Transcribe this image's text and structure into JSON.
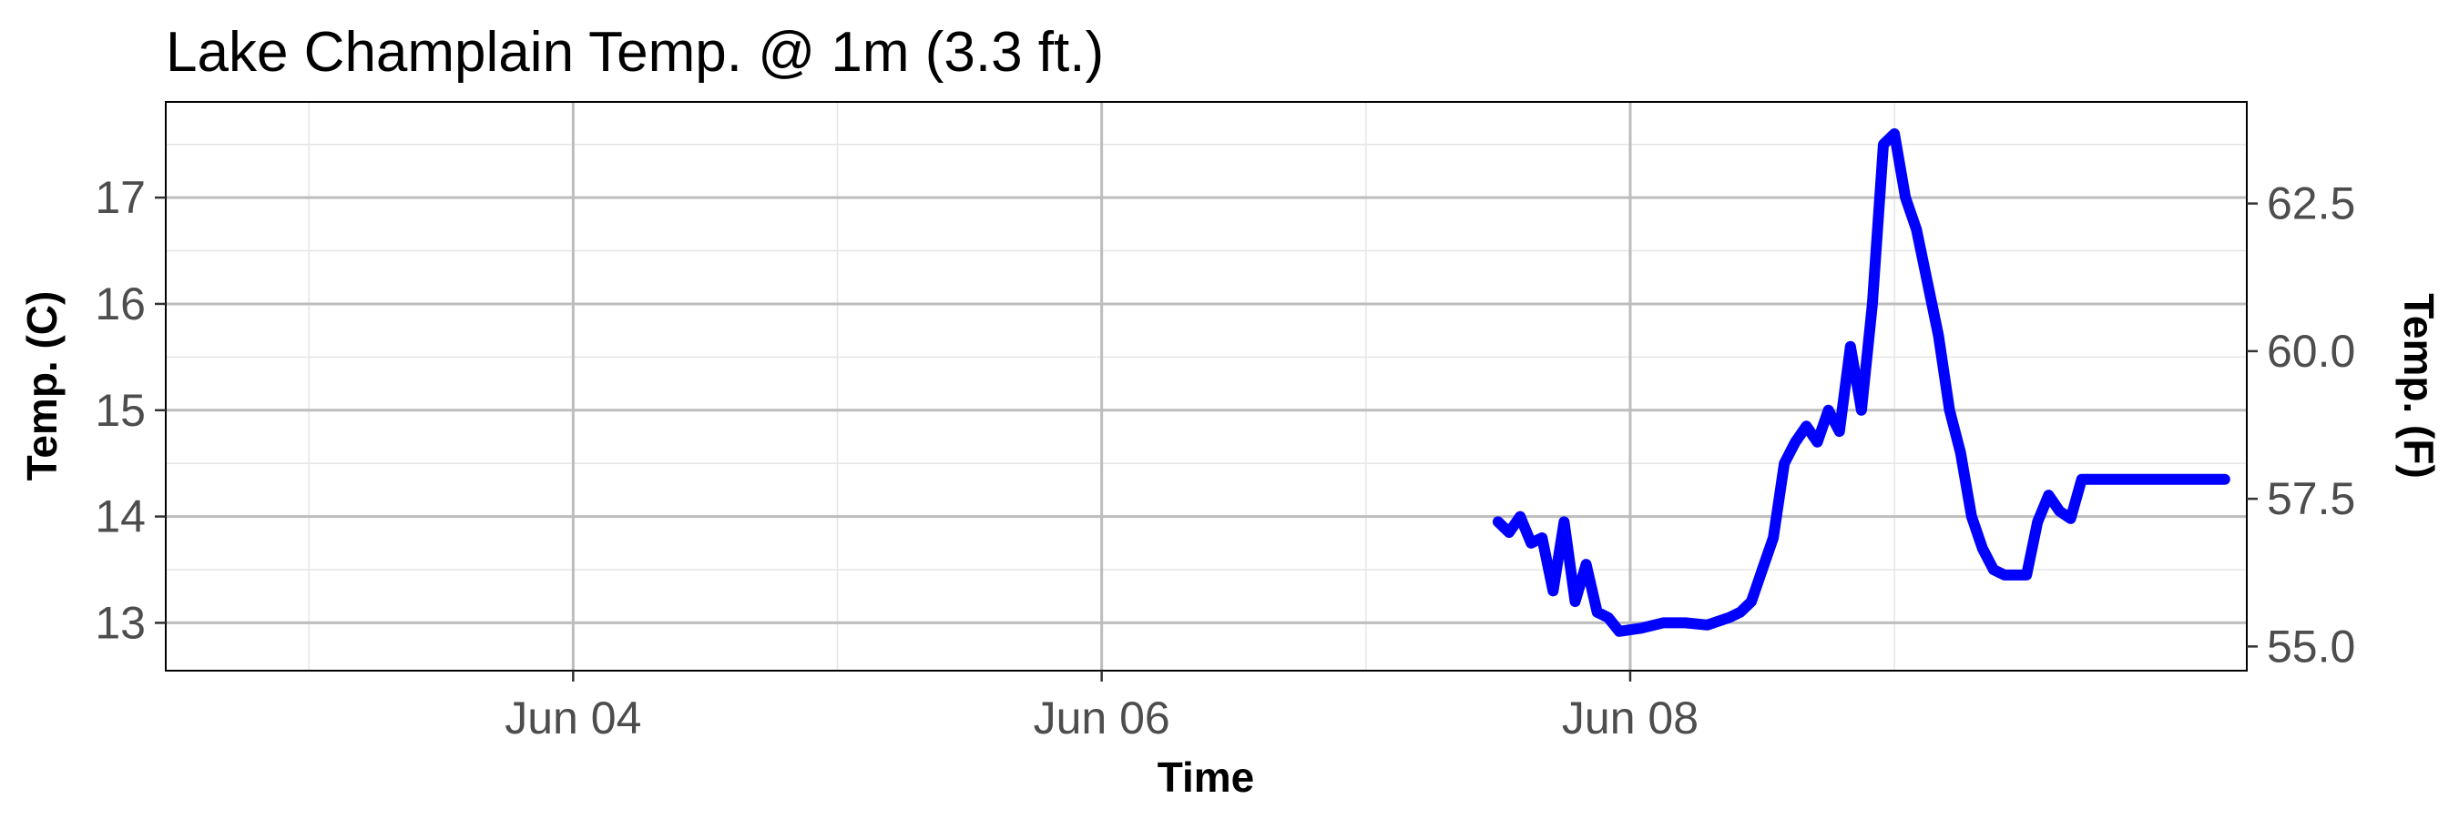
{
  "chart_data": {
    "type": "line",
    "title": "Lake Champlain Temp. @ 1m (3.3 ft.)",
    "xlabel": "Time",
    "ylabel": "Temp. (C)",
    "y2label": "Temp. (F)",
    "x_ticks": [
      "2023-06-04",
      "2023-06-06",
      "2023-06-08"
    ],
    "x_tick_labels": [
      "Jun 04",
      "Jun 06",
      "Jun 08"
    ],
    "xlim": [
      "2023-06-02T11:00",
      "2023-06-10T08:00"
    ],
    "ylim": [
      12.55,
      17.9
    ],
    "y_ticks": [
      13,
      14,
      15,
      16,
      17
    ],
    "y_tick_labels": [
      "13",
      "14",
      "15",
      "16",
      "17"
    ],
    "y2_ticks": [
      55.0,
      57.5,
      60.0,
      62.5
    ],
    "y2_tick_labels": [
      "55.0",
      "57.5",
      "60.0",
      "62.5"
    ],
    "grid": true,
    "legend": "none",
    "series": [
      {
        "color": "#0000ff",
        "x": [
          "2023-06-07T12:00",
          "2023-06-07T13:00",
          "2023-06-07T14:00",
          "2023-06-07T15:00",
          "2023-06-07T16:00",
          "2023-06-07T17:00",
          "2023-06-07T18:00",
          "2023-06-07T19:00",
          "2023-06-07T20:00",
          "2023-06-07T21:00",
          "2023-06-07T22:00",
          "2023-06-07T23:00",
          "2023-06-08T01:00",
          "2023-06-08T03:00",
          "2023-06-08T05:00",
          "2023-06-08T07:00",
          "2023-06-08T09:00",
          "2023-06-08T10:00",
          "2023-06-08T11:00",
          "2023-06-08T12:00",
          "2023-06-08T13:00",
          "2023-06-08T14:00",
          "2023-06-08T15:00",
          "2023-06-08T16:00",
          "2023-06-08T17:00",
          "2023-06-08T18:00",
          "2023-06-08T19:00",
          "2023-06-08T20:00",
          "2023-06-08T21:00",
          "2023-06-08T22:00",
          "2023-06-08T23:00",
          "2023-06-09T00:00",
          "2023-06-09T01:00",
          "2023-06-09T02:00",
          "2023-06-09T03:00",
          "2023-06-09T04:00",
          "2023-06-09T05:00",
          "2023-06-09T06:00",
          "2023-06-09T07:00",
          "2023-06-09T08:00",
          "2023-06-09T09:00",
          "2023-06-09T10:00",
          "2023-06-09T11:00",
          "2023-06-09T12:00",
          "2023-06-09T13:00",
          "2023-06-09T14:00",
          "2023-06-09T15:00",
          "2023-06-09T16:00",
          "2023-06-09T17:00",
          "2023-06-09T18:00",
          "2023-06-09T19:00",
          "2023-06-09T20:00",
          "2023-06-09T21:00",
          "2023-06-09T22:00",
          "2023-06-09T23:00",
          "2023-06-10T00:00",
          "2023-06-10T01:00",
          "2023-06-10T02:00",
          "2023-06-10T03:00",
          "2023-06-10T04:00",
          "2023-06-10T05:00",
          "2023-06-10T06:00"
        ],
        "y": [
          13.95,
          13.85,
          14.0,
          13.75,
          13.8,
          13.3,
          13.95,
          13.2,
          13.55,
          13.1,
          13.05,
          12.92,
          12.95,
          13.0,
          13.0,
          12.98,
          13.05,
          13.1,
          13.2,
          13.5,
          13.8,
          14.5,
          14.7,
          14.85,
          14.7,
          15.0,
          14.8,
          15.6,
          15.0,
          16.0,
          17.5,
          17.6,
          17.0,
          16.7,
          16.2,
          15.7,
          15.0,
          14.6,
          14.0,
          13.7,
          13.5,
          13.45,
          13.45,
          13.45,
          13.95,
          14.2,
          14.05,
          13.98,
          14.35,
          14.35,
          14.35,
          14.35,
          14.35,
          14.35,
          14.35,
          14.35,
          14.35,
          14.35,
          14.35,
          14.35,
          14.35,
          14.35
        ]
      }
    ]
  }
}
